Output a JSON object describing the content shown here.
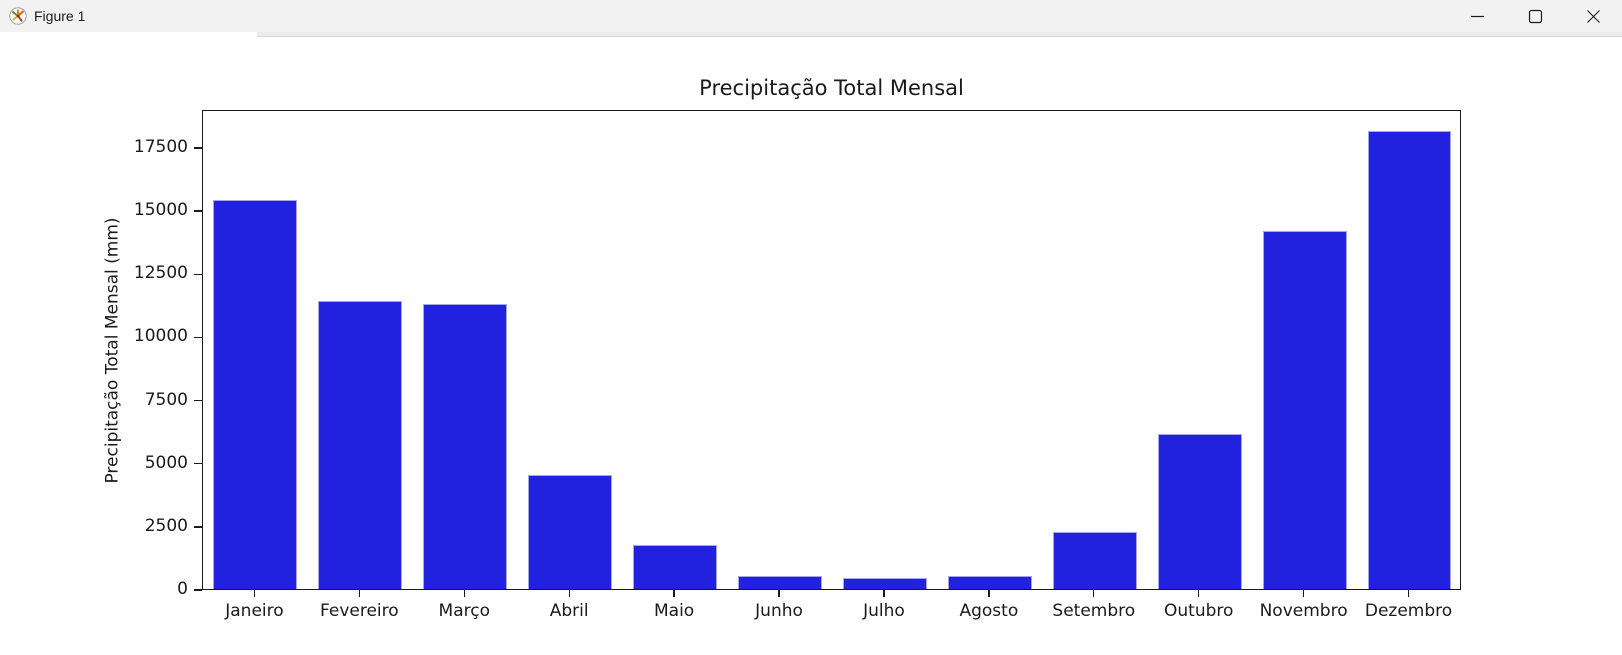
{
  "window": {
    "title": "Figure 1"
  },
  "chart_data": {
    "type": "bar",
    "title": "Precipitação Total Mensal",
    "xlabel": "",
    "ylabel": "Precipitação Total Mensal (mm)",
    "categories": [
      "Janeiro",
      "Fevereiro",
      "Março",
      "Abril",
      "Maio",
      "Junho",
      "Julho",
      "Agosto",
      "Setembro",
      "Outubro",
      "Novembro",
      "Dezembro"
    ],
    "values": [
      15400,
      11420,
      11290,
      4520,
      1750,
      500,
      430,
      500,
      2250,
      6150,
      14180,
      18120
    ],
    "yticks": [
      0,
      2500,
      5000,
      7500,
      10000,
      12500,
      15000,
      17500
    ],
    "ylim": [
      0,
      19000
    ],
    "grid": false,
    "legend": "none",
    "bar_color": "#2121de",
    "bar_edge_color": "#a6a6ea"
  }
}
